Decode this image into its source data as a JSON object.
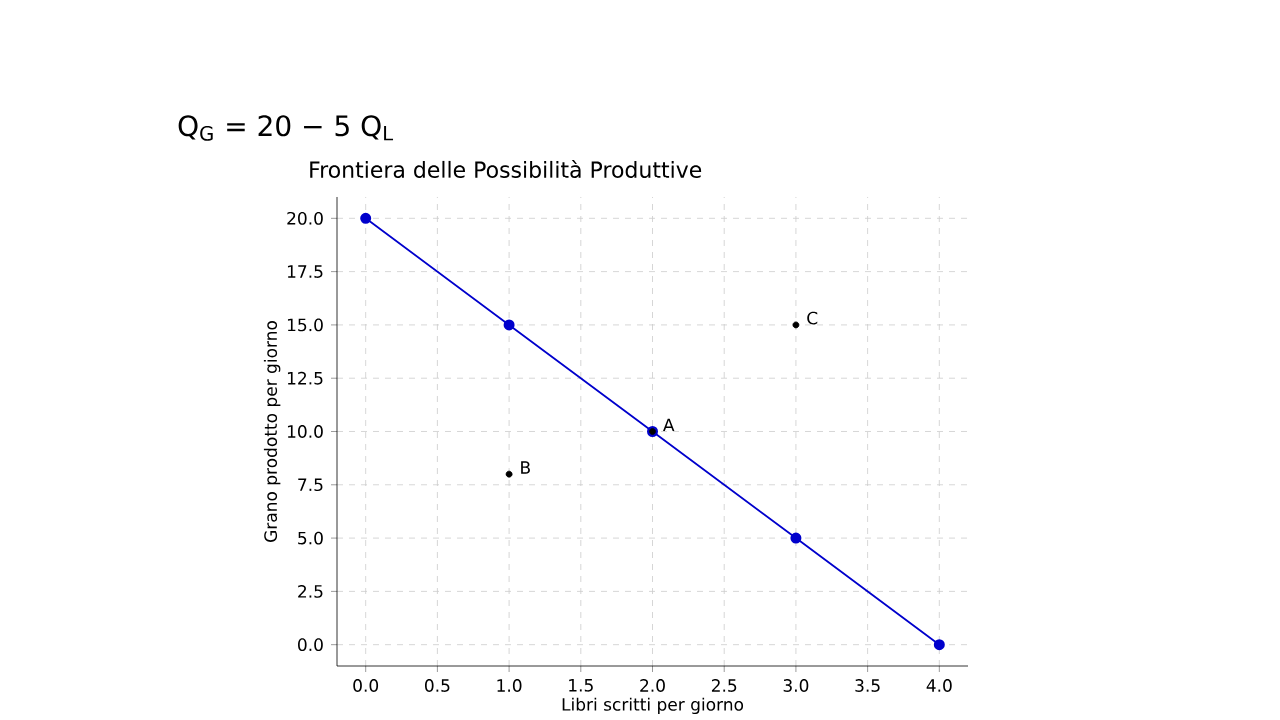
{
  "chart_data": {
    "type": "line",
    "title": "Frontiera delle Possibilità Produttive",
    "xlabel": "Libri scritti per giorno",
    "ylabel": "Grano prodotto per giorno",
    "series": [
      {
        "color": "#0000cc",
        "x": [
          0,
          1,
          2,
          3,
          4
        ],
        "values": [
          20,
          15,
          10,
          5,
          0
        ],
        "marker": "circle",
        "line_style": "solid"
      },
      {
        "type": "scatter",
        "color": "#000000",
        "x": [
          2,
          1,
          3
        ],
        "values": [
          10,
          8,
          15
        ],
        "marker": "circle"
      }
    ],
    "annotations": [
      {
        "text": "A",
        "x": 2,
        "y": 10
      },
      {
        "text": "B",
        "x": 1,
        "y": 8
      },
      {
        "text": "C",
        "x": 3,
        "y": 15
      },
      "Q$_{G}$ = 20 − 5 Q$_{L}$"
    ],
    "xlim": [
      -0.2,
      4.2
    ],
    "ylim": [
      -1,
      21
    ],
    "xticks": [
      {
        "value": 0,
        "label": "0.0"
      },
      {
        "value": 0.5,
        "label": "0.5"
      },
      {
        "value": 1,
        "label": "1.0"
      },
      {
        "value": 1.5,
        "label": "1.5"
      },
      {
        "value": 2,
        "label": "2.0"
      },
      {
        "value": 2.5,
        "label": "2.5"
      },
      {
        "value": 3,
        "label": "3.0"
      },
      {
        "value": 3.5,
        "label": "3.5"
      },
      {
        "value": 4,
        "label": "4.0"
      }
    ],
    "yticks": [
      {
        "value": 0,
        "label": "0.0"
      },
      {
        "value": 2.5,
        "label": "2.5"
      },
      {
        "value": 5,
        "label": "5.0"
      },
      {
        "value": 7.5,
        "label": "7.5"
      },
      {
        "value": 10,
        "label": "10.0"
      },
      {
        "value": 12.5,
        "label": "12.5"
      },
      {
        "value": 15,
        "label": "15.0"
      },
      {
        "value": 17.5,
        "label": "17.5"
      },
      {
        "value": 20,
        "label": "20.0"
      }
    ],
    "grid": true
  }
}
